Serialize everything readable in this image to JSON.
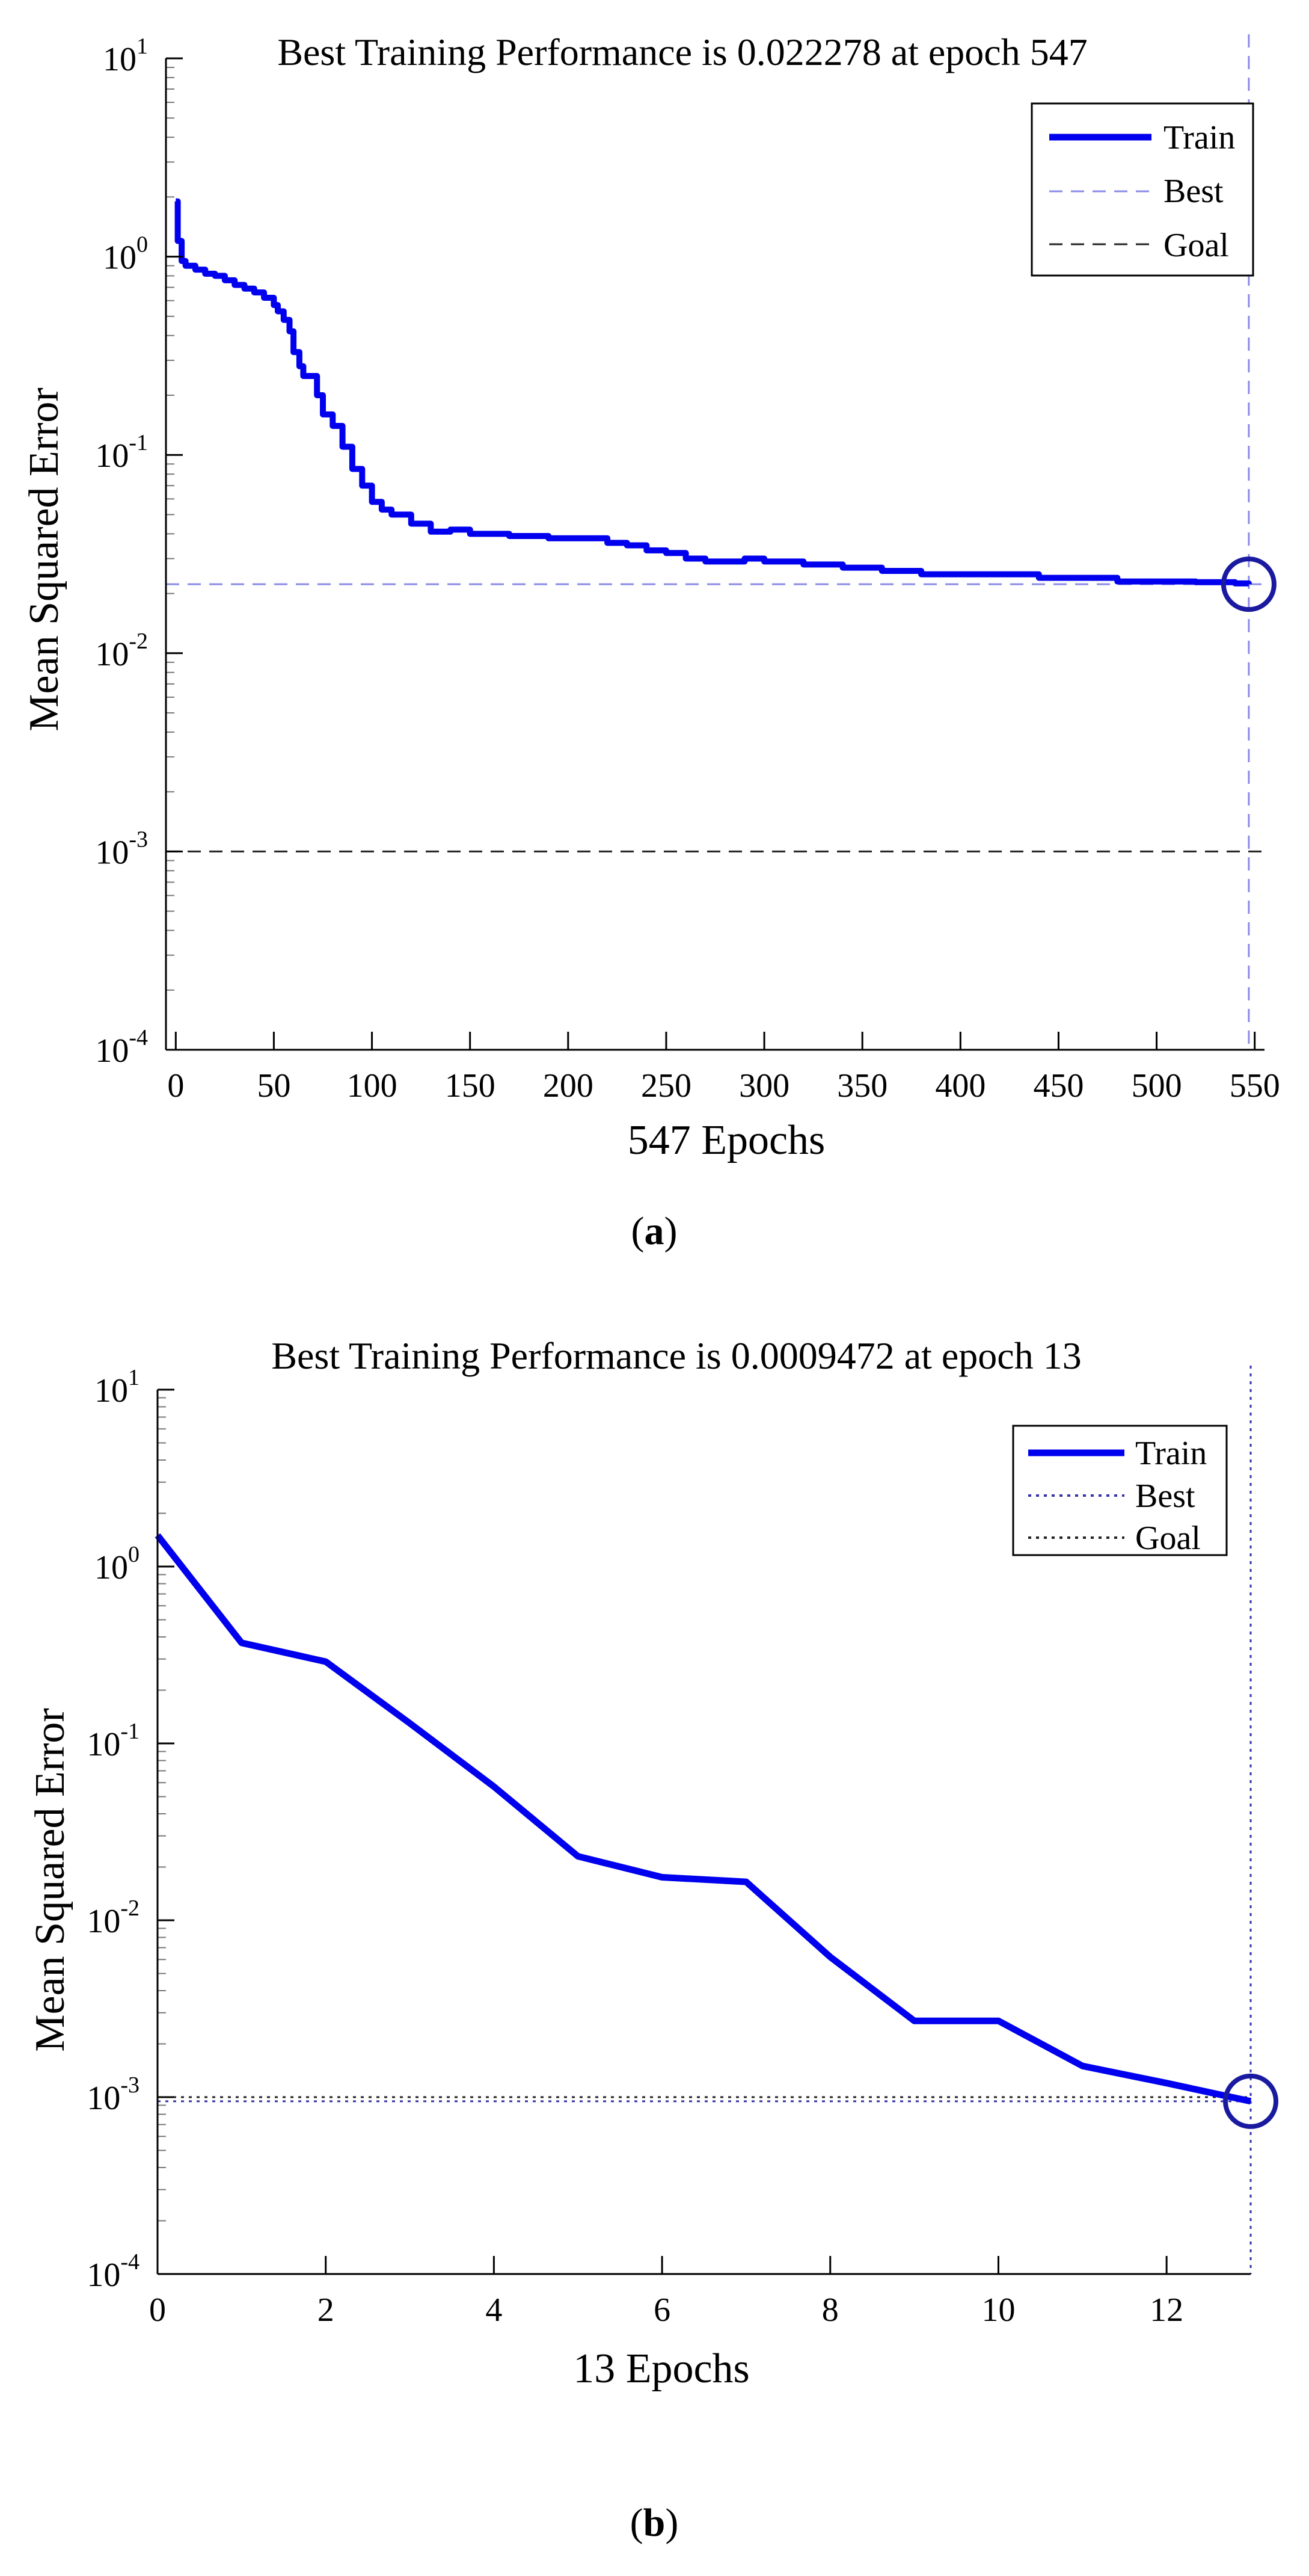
{
  "colors": {
    "train": "#0000ee",
    "best_a": "#8a8ae6",
    "best_b": "#3434a8",
    "goal": "#222222",
    "circle": "#1a1aa0",
    "axis": "#000000"
  },
  "captions": [
    {
      "open": "(",
      "letter": "a",
      "close": ")"
    },
    {
      "open": "(",
      "letter": "b",
      "close": ")"
    }
  ],
  "chart_data": [
    {
      "type": "line",
      "yscale": "log",
      "title": "Best Training Performance is 0.022278 at epoch 547",
      "xlabel": "547 Epochs",
      "ylabel": "Mean Squared Error",
      "xlim": [
        -5,
        555
      ],
      "ylim": [
        0.0001,
        10
      ],
      "xticks": [
        0,
        50,
        100,
        150,
        200,
        250,
        300,
        350,
        400,
        450,
        500,
        550
      ],
      "yticks": [
        {
          "value": 10,
          "base": "10",
          "exp": "1"
        },
        {
          "value": 1,
          "base": "10",
          "exp": "0"
        },
        {
          "value": 0.1,
          "base": "10",
          "exp": "-1"
        },
        {
          "value": 0.01,
          "base": "10",
          "exp": "-2"
        },
        {
          "value": 0.001,
          "base": "10",
          "exp": "-3"
        },
        {
          "value": 0.0001,
          "base": "10",
          "exp": "-4"
        }
      ],
      "legend": {
        "position": "top-right",
        "train": "Train",
        "best": "Best",
        "goal": "Goal"
      },
      "best_style": "dashed",
      "goal_style": "dashed",
      "best": {
        "epoch": 547,
        "value": 0.022278
      },
      "goal": 0.001,
      "train": {
        "x": [
          0,
          1,
          3,
          5,
          10,
          15,
          20,
          25,
          30,
          35,
          40,
          45,
          50,
          52,
          55,
          58,
          60,
          63,
          65,
          70,
          72,
          75,
          80,
          85,
          90,
          95,
          100,
          105,
          110,
          120,
          130,
          140,
          150,
          160,
          170,
          180,
          190,
          200,
          220,
          230,
          240,
          250,
          260,
          270,
          280,
          290,
          300,
          320,
          340,
          360,
          380,
          400,
          420,
          440,
          460,
          480,
          500,
          520,
          540,
          547
        ],
        "y": [
          1.9,
          1.2,
          0.95,
          0.9,
          0.86,
          0.82,
          0.8,
          0.76,
          0.72,
          0.69,
          0.66,
          0.62,
          0.57,
          0.53,
          0.48,
          0.42,
          0.33,
          0.28,
          0.25,
          0.25,
          0.2,
          0.16,
          0.14,
          0.11,
          0.085,
          0.07,
          0.058,
          0.053,
          0.05,
          0.045,
          0.041,
          0.042,
          0.04,
          0.04,
          0.039,
          0.039,
          0.038,
          0.038,
          0.036,
          0.035,
          0.033,
          0.032,
          0.03,
          0.029,
          0.029,
          0.03,
          0.029,
          0.028,
          0.027,
          0.026,
          0.025,
          0.025,
          0.025,
          0.024,
          0.024,
          0.023,
          0.023,
          0.0228,
          0.0225,
          0.022278
        ]
      }
    },
    {
      "type": "line",
      "yscale": "log",
      "title": "Best Training Performance is 0.0009472 at epoch 13",
      "xlabel": "13 Epochs",
      "ylabel": "Mean Squared Error",
      "xlim": [
        0,
        13
      ],
      "ylim": [
        0.0001,
        10
      ],
      "xticks": [
        0,
        2,
        4,
        6,
        8,
        10,
        12
      ],
      "yticks": [
        {
          "value": 10,
          "base": "10",
          "exp": "1"
        },
        {
          "value": 1,
          "base": "10",
          "exp": "0"
        },
        {
          "value": 0.1,
          "base": "10",
          "exp": "-1"
        },
        {
          "value": 0.01,
          "base": "10",
          "exp": "-2"
        },
        {
          "value": 0.001,
          "base": "10",
          "exp": "-3"
        },
        {
          "value": 0.0001,
          "base": "10",
          "exp": "-4"
        }
      ],
      "legend": {
        "position": "top-right",
        "train": "Train",
        "best": "Best",
        "goal": "Goal"
      },
      "best_style": "dotted",
      "goal_style": "dotted",
      "best": {
        "epoch": 13,
        "value": 0.0009472
      },
      "goal": 0.001,
      "train": {
        "x": [
          0,
          1,
          2,
          3,
          4,
          5,
          6,
          7,
          8,
          9,
          10,
          11,
          12,
          13
        ],
        "y": [
          1.5,
          0.37,
          0.29,
          0.13,
          0.057,
          0.023,
          0.0175,
          0.0165,
          0.0062,
          0.0027,
          0.0027,
          0.0015,
          0.0012,
          0.0009472
        ]
      }
    }
  ]
}
